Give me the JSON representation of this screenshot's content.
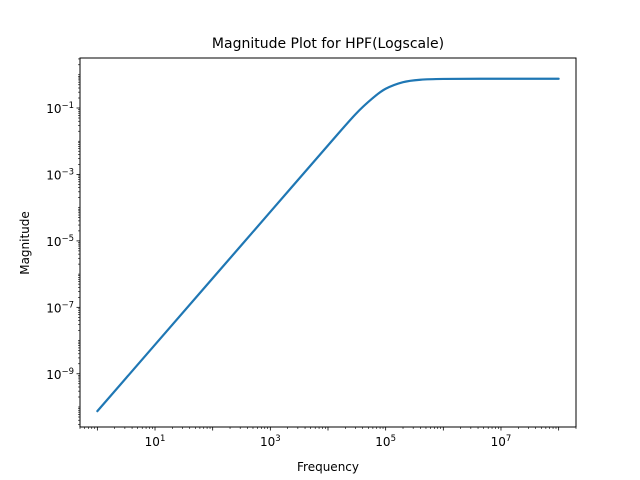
{
  "chart_data": {
    "type": "line",
    "title": "Magnitude Plot for HPF(Logscale)",
    "xlabel": "Frequency",
    "ylabel": "Magnitude",
    "xscale": "log",
    "yscale": "log",
    "xlim": [
      0.5,
      200000000
    ],
    "ylim": [
      2.5e-11,
      3.2
    ],
    "x_ticks": [
      {
        "value": 10,
        "base": "10",
        "exp": "1"
      },
      {
        "value": 1000,
        "base": "10",
        "exp": "3"
      },
      {
        "value": 100000,
        "base": "10",
        "exp": "5"
      },
      {
        "value": 10000000,
        "base": "10",
        "exp": "7"
      }
    ],
    "y_ticks": [
      {
        "value": 0.1,
        "base": "10",
        "exp": "−1"
      },
      {
        "value": 0.001,
        "base": "10",
        "exp": "−3"
      },
      {
        "value": 1e-05,
        "base": "10",
        "exp": "−5"
      },
      {
        "value": 1e-07,
        "base": "10",
        "exp": "−7"
      },
      {
        "value": 1e-09,
        "base": "10",
        "exp": "−9"
      }
    ],
    "grid": false,
    "legend": "none",
    "series": [
      {
        "color": "#1f77b4",
        "x": [
          1,
          10,
          100,
          1000,
          10000,
          30000,
          60000,
          100000,
          200000,
          400000,
          1000000,
          10000000,
          100000000
        ],
        "y": [
          7.5e-11,
          7.5e-09,
          7.5e-07,
          7.5e-05,
          0.0075,
          0.065,
          0.2,
          0.38,
          0.6,
          0.71,
          0.75,
          0.76,
          0.76
        ]
      }
    ]
  }
}
